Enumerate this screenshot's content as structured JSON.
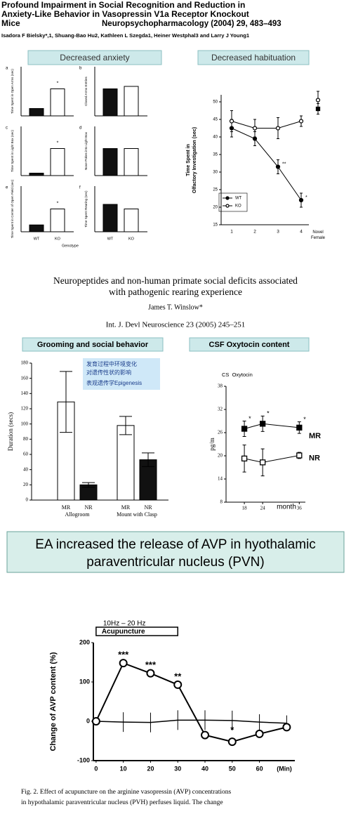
{
  "paper1": {
    "title_lines": [
      "Profound Impairment in Social Recognition and Reduction in",
      "Anxiety-Like Behavior in Vasopressin V1a Receptor Knockout",
      "Mice"
    ],
    "journal": "Neuropsychopharmacology (2004) 29, 483–493",
    "authors": "Isadora F Bielsky*,1, Shuang-Bao Hu2, Kathleen L Szegda1, Heiner Westphal3 and Larry J Young1"
  },
  "paper2": {
    "title_lines": [
      "Neuropeptides and non-human primate social deficits associated",
      "with pathogenic rearing experience"
    ],
    "author": "James T. Winslow*",
    "journal": "Int. J. Devl Neuroscience 23 (2005) 245–251"
  },
  "headers": {
    "anxiety": "Decreased anxiety",
    "habituation": "Decreased habituation",
    "grooming": "Grooming and social behavior",
    "oxytocin": "CSF Oxytocin content",
    "ea": [
      "EA increased the release of AVP in hyothalamic",
      "paraventricular nucleus (PVN)"
    ]
  },
  "note_box": [
    "发育过程中环境变化",
    "对遗传性状的影响",
    "表观遗传学Epigenesis"
  ],
  "caption": [
    "Fig. 2. Effect of acupuncture on the arginine vasopressin (AVP) concentrations",
    "in hypothalamic paraventricular nucleus (PVH) perfuses liquid. The change"
  ],
  "chart_data": [
    {
      "type": "bar-panels",
      "categories": [
        "WT",
        "KO"
      ],
      "colors": [
        "#111111",
        "#ffffff"
      ],
      "xlabel": "Genotype",
      "ylim": [
        0,
        100
      ],
      "panels": [
        {
          "label": "a",
          "ylabel": "Time Spent in Open Arms (sec)",
          "values": [
            15,
            55
          ],
          "annotation": "*"
        },
        {
          "label": "b",
          "ylabel": "Closed Arms Entries",
          "values": [
            55,
            60
          ]
        },
        {
          "label": "c",
          "ylabel": "Time Spent in Light Box (sec)",
          "values": [
            5,
            55
          ],
          "annotation": "*"
        },
        {
          "label": "d",
          "ylabel": "Nose Pokes into Light Box",
          "values": [
            55,
            55
          ]
        },
        {
          "label": "e",
          "ylabel": "Time Spent in Center of Open Field (sec)",
          "values": [
            15,
            50
          ],
          "annotation": "*"
        },
        {
          "label": "f",
          "ylabel": "Time Spent Rearing (sec)",
          "values": [
            60,
            50
          ]
        }
      ]
    },
    {
      "type": "line",
      "categories": [
        "1",
        "2",
        "3",
        "4"
      ],
      "novel_label": "Novel Female",
      "ylim": [
        15,
        52
      ],
      "yticks": [
        15,
        20,
        25,
        30,
        35,
        40,
        45,
        50
      ],
      "ylabel": [
        "Time Spent in",
        "Olfactory Investigation (sec)"
      ],
      "series": [
        {
          "name": "WT",
          "marker": "filled",
          "values": [
            42.5,
            39.5,
            31.5,
            22
          ],
          "errors": [
            2.5,
            2,
            2,
            2
          ],
          "novel": 48,
          "novel_error": 1.5
        },
        {
          "name": "KO",
          "marker": "open",
          "values": [
            44.5,
            42.5,
            42.5,
            44.5
          ],
          "errors": [
            3,
            2.5,
            3,
            1.5
          ],
          "novel": 50.5,
          "novel_error": 2.5
        }
      ],
      "annotations": [
        {
          "text": "**",
          "series": 0,
          "at": 2
        },
        {
          "text": "*",
          "series": 0,
          "at": 3
        }
      ]
    },
    {
      "type": "grouped-bar",
      "categories": [
        "Allogroom",
        "Mount with Clasp"
      ],
      "ylim": [
        0,
        180
      ],
      "yticks": [
        0,
        20,
        40,
        60,
        80,
        100,
        120,
        140,
        160,
        180
      ],
      "ylabel": "Duration (secs)",
      "series": [
        {
          "name": "MR",
          "color": "#ffffff",
          "values": [
            129,
            98
          ],
          "errors": [
            40,
            12
          ]
        },
        {
          "name": "NR",
          "color": "#111111",
          "values": [
            20,
            53
          ],
          "errors": [
            3,
            9
          ]
        }
      ]
    },
    {
      "type": "line",
      "label": "CS  Oxytocin",
      "x": [
        18,
        24,
        36
      ],
      "xlim": [
        12,
        38
      ],
      "xticks": [
        18,
        24,
        36
      ],
      "xlabel": "month",
      "ylim": [
        8,
        38
      ],
      "yticks": [
        8,
        14,
        20,
        26,
        32,
        38
      ],
      "ylabel": "pg/m",
      "series": [
        {
          "name": "MR",
          "marker": "filled",
          "values": [
            27,
            28.3,
            27.3
          ],
          "errors": [
            2,
            2,
            1.5
          ],
          "annotation": "*"
        },
        {
          "name": "NR",
          "marker": "open",
          "values": [
            19.3,
            18.3,
            20.1
          ],
          "errors": [
            3.5,
            3.5,
            0.8
          ]
        }
      ]
    },
    {
      "type": "line",
      "x": [
        0,
        10,
        20,
        30,
        40,
        50,
        60,
        70
      ],
      "xlim": [
        -1,
        73
      ],
      "xticks": [
        0,
        10,
        20,
        30,
        40,
        50,
        60
      ],
      "xlabel": "(Min)",
      "ylim": [
        -100,
        200
      ],
      "yticks": [
        -100,
        0,
        100,
        200
      ],
      "ylabel": "Change of AVP content (%)",
      "stimulus": {
        "frequency": "10Hz – 20 Hz",
        "label": "Acupuncture",
        "range": [
          0,
          30
        ]
      },
      "series": [
        {
          "marker": "open",
          "values": [
            0,
            148,
            122,
            93,
            -35,
            -52,
            -32,
            -15
          ]
        },
        {
          "marker": "none",
          "values": [
            0,
            -2,
            -3,
            3,
            3,
            2,
            -2,
            -5
          ],
          "errors": [
            0,
            25,
            25,
            25,
            25,
            25,
            20,
            20
          ]
        }
      ],
      "annotations": [
        {
          "text": "***",
          "x": 10
        },
        {
          "text": "***",
          "x": 20
        },
        {
          "text": "**",
          "x": 30
        },
        {
          "text": "*",
          "x": 50
        }
      ]
    }
  ]
}
